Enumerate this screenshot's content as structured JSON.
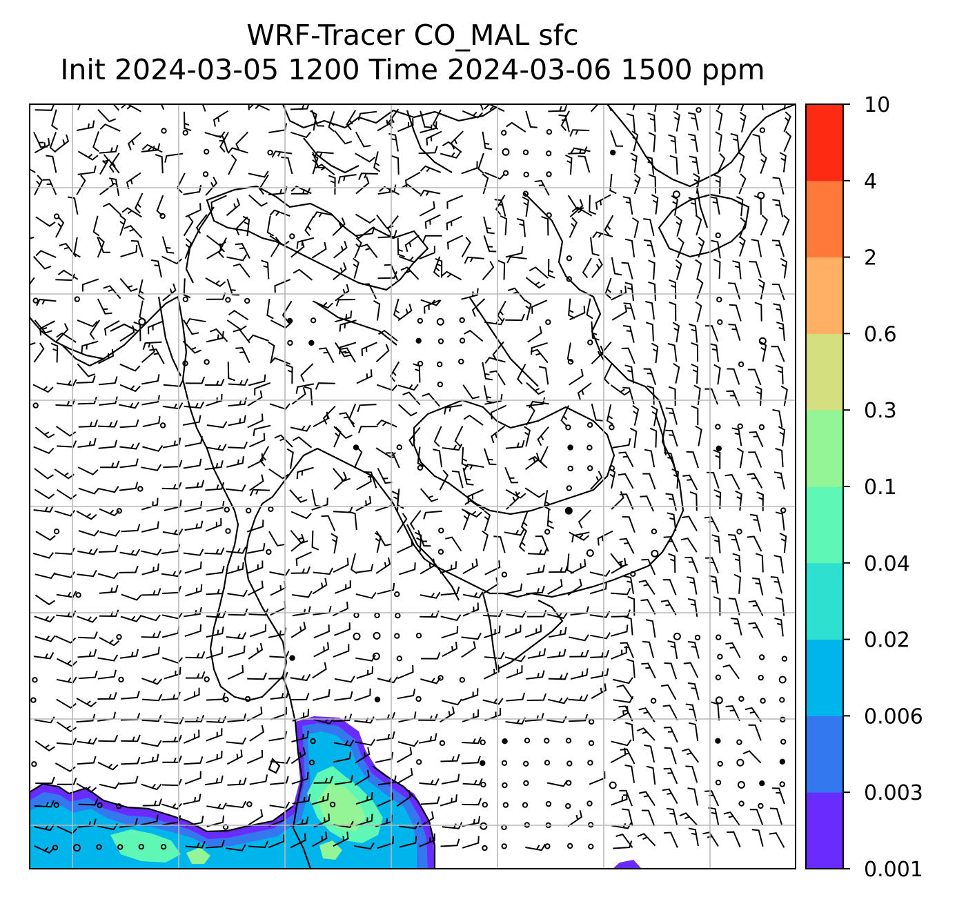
{
  "title": {
    "line1": "WRF-Tracer CO_MAL sfc",
    "line2": "Init 2024-03-05 1200 Time 2024-03-06 1500 ppm"
  },
  "colorbar": {
    "levels": [
      "0.001",
      "0.003",
      "0.006",
      "0.02",
      "0.04",
      "0.1",
      "0.3",
      "0.6",
      "2",
      "4",
      "10"
    ],
    "colors": [
      "#6a2bff",
      "#3478f0",
      "#00b4ec",
      "#2ee0d0",
      "#5ff7b5",
      "#93f596",
      "#d4e080",
      "#ffb064",
      "#ff7a3a",
      "#ff2a12"
    ]
  },
  "map": {
    "gridlines": "on",
    "land_color": "#ffffff",
    "plume_colors": [
      "#6a2bff",
      "#3478f0",
      "#00b4ec",
      "#5ff7b5",
      "#93f596"
    ]
  }
}
